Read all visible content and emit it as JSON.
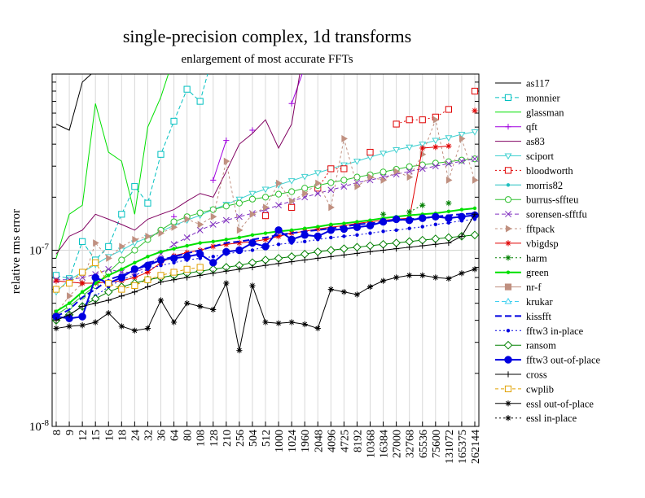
{
  "chart_data": {
    "type": "line",
    "title": "single-precision complex, 1d transforms",
    "subtitle": "enlargement of most accurate FFTs",
    "ylabel": "relative rms error",
    "xlabel": "",
    "y_scale": "log",
    "ylim": [
      1e-08,
      1e-06
    ],
    "y_tick_labels": [
      "10-8",
      "10-7"
    ],
    "y_tick_values": [
      1e-08,
      1e-07
    ],
    "legend_position": "right",
    "grid": true,
    "categories": [
      "8",
      "9",
      "12",
      "15",
      "16",
      "18",
      "24",
      "32",
      "36",
      "64",
      "80",
      "108",
      "128",
      "210",
      "256",
      "504",
      "512",
      "1000",
      "1024",
      "1960",
      "2048",
      "4096",
      "4725",
      "8192",
      "10368",
      "16384",
      "27000",
      "32768",
      "65536",
      "75600",
      "131072",
      "165375",
      "262144"
    ],
    "series": [
      {
        "name": "as117",
        "color": "#000000",
        "dash": "",
        "marker": "none",
        "values": [
          5.2e-07,
          4.8e-07,
          9e-07,
          1.05e-06,
          1.2e-06,
          1.25e-06,
          null,
          null,
          null,
          null,
          null,
          null,
          null,
          null,
          null,
          null,
          null,
          null,
          null,
          null,
          null,
          null,
          null,
          null,
          null,
          null,
          null,
          null,
          null,
          null,
          null,
          null,
          null
        ]
      },
      {
        "name": "monnier",
        "color": "#00c0c0",
        "dash": "5,3",
        "marker": "square",
        "values": [
          7.2e-08,
          6.9e-08,
          1.12e-07,
          8.8e-08,
          1.05e-07,
          1.6e-07,
          2.3e-07,
          1.85e-07,
          3.5e-07,
          5.4e-07,
          8.2e-07,
          7e-07,
          1.3e-06,
          null,
          null,
          null,
          null,
          null,
          null,
          null,
          null,
          null,
          null,
          null,
          null,
          null,
          null,
          null,
          null,
          null,
          null,
          null,
          null
        ]
      },
      {
        "name": "glassman",
        "color": "#00e000",
        "dash": "",
        "marker": "none",
        "values": [
          9e-08,
          1.6e-07,
          1.8e-07,
          6.8e-07,
          3.6e-07,
          3.2e-07,
          1.6e-07,
          5e-07,
          7.4e-07,
          1.25e-06,
          null,
          null,
          1.2e-06,
          1.5e-06,
          1.05e-06,
          null,
          null,
          null,
          null,
          null,
          null,
          null,
          null,
          null,
          null,
          null,
          null,
          null,
          null,
          null,
          null,
          null,
          null
        ]
      },
      {
        "name": "qft",
        "color": "#a000e0",
        "dash": "",
        "marker": "plus",
        "values": [
          null,
          null,
          null,
          null,
          null,
          null,
          null,
          null,
          null,
          1.55e-07,
          null,
          null,
          2.5e-07,
          4.2e-07,
          null,
          4.8e-07,
          null,
          null,
          6.8e-07,
          1.1e-06,
          null,
          null,
          null,
          null,
          null,
          null,
          null,
          null,
          null,
          null,
          null,
          null,
          null
        ]
      },
      {
        "name": "as83",
        "color": "#800060",
        "dash": "",
        "marker": "none",
        "values": [
          9.5e-08,
          1.2e-07,
          1.3e-07,
          1.6e-07,
          1.5e-07,
          1.4e-07,
          1.3e-07,
          1.5e-07,
          1.6e-07,
          1.7e-07,
          1.9e-07,
          2.1e-07,
          2e-07,
          2.8e-07,
          4e-07,
          4.6e-07,
          5.5e-07,
          3.8e-07,
          5.2e-07,
          1.5e-06,
          null,
          null,
          null,
          null,
          null,
          null,
          null,
          null,
          null,
          null,
          null,
          null,
          null
        ]
      },
      {
        "name": "sciport",
        "color": "#40d0d0",
        "dash": "",
        "marker": "tri-down",
        "values": [
          5.8e-08,
          6.8e-08,
          7.5e-08,
          8.3e-08,
          9.2e-08,
          1e-07,
          1.1e-07,
          1.18e-07,
          1.28e-07,
          1.38e-07,
          1.48e-07,
          1.58e-07,
          1.7e-07,
          1.82e-07,
          1.95e-07,
          2.1e-07,
          2.22e-07,
          2.35e-07,
          2.48e-07,
          2.62e-07,
          2.75e-07,
          2.9e-07,
          3.05e-07,
          3.2e-07,
          3.38e-07,
          3.55e-07,
          3.72e-07,
          3.85e-07,
          4e-07,
          4.2e-07,
          4.35e-07,
          4.55e-07,
          4.7e-07
        ]
      },
      {
        "name": "bloodworth",
        "color": "#e00000",
        "dash": "2,3",
        "marker": "square",
        "values": [
          null,
          null,
          null,
          null,
          null,
          null,
          null,
          null,
          null,
          null,
          null,
          null,
          null,
          null,
          null,
          null,
          1.57e-07,
          null,
          1.75e-07,
          null,
          2.25e-07,
          2.9e-07,
          2.9e-07,
          null,
          3.6e-07,
          null,
          5.2e-07,
          5.5e-07,
          5.5e-07,
          5.7e-07,
          6.3e-07,
          null,
          8e-07
        ]
      },
      {
        "name": "morris82",
        "color": "#20c0c0",
        "dash": "",
        "marker": "dot",
        "values": [
          null,
          null,
          null,
          null,
          null,
          null,
          null,
          null,
          null,
          null,
          null,
          null,
          null,
          null,
          null,
          null,
          null,
          null,
          null,
          null,
          null,
          null,
          null,
          null,
          null,
          null,
          null,
          null,
          null,
          null,
          null,
          null,
          null
        ]
      },
      {
        "name": "burrus-sfftеu",
        "color": "#30c030",
        "dash": "",
        "marker": "circle",
        "values": [
          4.3e-08,
          4.8e-08,
          5.5e-08,
          6.3e-08,
          7.5e-08,
          8.8e-08,
          1e-07,
          1.15e-07,
          1.3e-07,
          1.45e-07,
          1.55e-07,
          1.63e-07,
          1.7e-07,
          1.78e-07,
          1.85e-07,
          1.95e-07,
          2e-07,
          2.08e-07,
          2.15e-07,
          2.25e-07,
          2.33e-07,
          2.42e-07,
          2.5e-07,
          2.6e-07,
          2.68e-07,
          2.78e-07,
          2.88e-07,
          2.98e-07,
          3.05e-07,
          3.12e-07,
          3.18e-07,
          3.25e-07,
          3.3e-07
        ]
      },
      {
        "name": "sorensen-sfftfu",
        "color": "#8030c0",
        "dash": "5,3",
        "marker": "x",
        "values": [
          6.8e-08,
          6.8e-08,
          7e-08,
          7.3e-08,
          7.8e-08,
          7.5e-08,
          7.5e-08,
          8e-08,
          9.5e-08,
          1.08e-07,
          1.18e-07,
          1.3e-07,
          1.4e-07,
          1.48e-07,
          1.55e-07,
          1.62e-07,
          1.7e-07,
          1.8e-07,
          1.9e-07,
          2e-07,
          2.1e-07,
          2.2e-07,
          2.3e-07,
          2.42e-07,
          2.5e-07,
          2.6e-07,
          2.7e-07,
          2.8e-07,
          2.9e-07,
          3e-07,
          3.1e-07,
          3.2e-07,
          3.3e-07
        ]
      },
      {
        "name": "fftpack",
        "color": "#c09080",
        "dash": "3,3",
        "marker": "tri-right",
        "values": [
          4.4e-08,
          5.5e-08,
          6.5e-08,
          1.1e-07,
          9e-08,
          1.05e-07,
          1.15e-07,
          1.2e-07,
          1.25e-07,
          1.35e-07,
          1.5e-07,
          1.4e-07,
          1.55e-07,
          3.2e-07,
          1.3e-07,
          1.6e-07,
          1.75e-07,
          2.4e-07,
          1.9e-07,
          2.1e-07,
          2.4e-07,
          1.75e-07,
          4.3e-07,
          2.3e-07,
          2.6e-07,
          2.5e-07,
          2.8e-07,
          2.6e-07,
          3.5e-07,
          5.5e-07,
          2.5e-07,
          4.3e-07,
          2.5e-07
        ]
      },
      {
        "name": "vbigdsp",
        "color": "#e00000",
        "dash": "",
        "marker": "asterisk",
        "values": [
          6.7e-08,
          6.6e-08,
          6.5e-08,
          6.5e-08,
          6.6e-08,
          6.7e-08,
          7e-08,
          7.5e-08,
          8.5e-08,
          9.3e-08,
          9.7e-08,
          1e-07,
          1.05e-07,
          1.08e-07,
          1.1e-07,
          1.12e-07,
          1.15e-07,
          1.2e-07,
          1.25e-07,
          1.28e-07,
          1.32e-07,
          1.35e-07,
          1.38e-07,
          1.42e-07,
          1.45e-07,
          1.48e-07,
          1.5e-07,
          1.52e-07,
          3.8e-07,
          3.85e-07,
          3.9e-07,
          null,
          6.2e-07
        ]
      },
      {
        "name": "harm",
        "color": "#008000",
        "dash": "2,3",
        "marker": "asterisk",
        "values": [
          null,
          null,
          null,
          null,
          null,
          null,
          null,
          null,
          null,
          null,
          null,
          null,
          null,
          null,
          null,
          null,
          null,
          null,
          null,
          null,
          null,
          null,
          null,
          null,
          null,
          1.6e-07,
          null,
          1.65e-07,
          1.8e-07,
          null,
          1.85e-07,
          null,
          null
        ]
      },
      {
        "name": "green",
        "color": "#00e000",
        "dash": "",
        "marker": "dot",
        "values": [
          4.5e-08,
          5e-08,
          5.8e-08,
          6.5e-08,
          7.2e-08,
          7.8e-08,
          8.5e-08,
          9.2e-08,
          9.8e-08,
          1.02e-07,
          1.06e-07,
          1.1e-07,
          1.12e-07,
          1.15e-07,
          1.18e-07,
          1.22e-07,
          1.25e-07,
          1.28e-07,
          1.3e-07,
          1.33e-07,
          1.36e-07,
          1.4e-07,
          1.42e-07,
          1.45e-07,
          1.48e-07,
          1.52e-07,
          1.55e-07,
          1.58e-07,
          1.6e-07,
          1.62e-07,
          1.66e-07,
          1.7e-07,
          1.73e-07
        ]
      },
      {
        "name": "nr-f",
        "color": "#c09080",
        "dash": "",
        "marker": "square-fill",
        "values": [
          null,
          null,
          null,
          null,
          null,
          null,
          null,
          null,
          null,
          null,
          null,
          null,
          null,
          null,
          null,
          null,
          null,
          null,
          null,
          null,
          null,
          null,
          null,
          null,
          null,
          null,
          null,
          null,
          null,
          null,
          null,
          null,
          null
        ]
      },
      {
        "name": "krukar",
        "color": "#40d0f0",
        "dash": "5,3",
        "marker": "tri-up",
        "values": [
          null,
          null,
          null,
          null,
          null,
          null,
          null,
          null,
          null,
          null,
          null,
          null,
          null,
          null,
          null,
          null,
          null,
          null,
          null,
          null,
          null,
          null,
          null,
          null,
          null,
          null,
          null,
          null,
          null,
          null,
          null,
          null,
          null
        ]
      },
      {
        "name": "kissfft",
        "color": "#0000e0",
        "dash": "8,4",
        "marker": "none",
        "values": [
          4.2e-08,
          4.6e-08,
          5.4e-08,
          6e-08,
          6.8e-08,
          7.2e-08,
          7.6e-08,
          8.5e-08,
          8.8e-08,
          9.2e-08,
          9.6e-08,
          1e-07,
          1.05e-07,
          1.1e-07,
          1.12e-07,
          1.15e-07,
          1.18e-07,
          1.22e-07,
          1.25e-07,
          1.28e-07,
          1.3e-07,
          1.33e-07,
          1.36e-07,
          1.4e-07,
          1.42e-07,
          1.45e-07,
          1.48e-07,
          1.5e-07,
          1.52e-07,
          1.55e-07,
          1.58e-07,
          1.6e-07,
          1.62e-07
        ]
      },
      {
        "name": "fftw3 in-place",
        "color": "#0000e0",
        "dash": "2,3",
        "marker": "dot",
        "values": [
          4.1e-08,
          4.3e-08,
          4.8e-08,
          5.5e-08,
          6.2e-08,
          6.8e-08,
          7.2e-08,
          7.8e-08,
          8.2e-08,
          8.5e-08,
          8.8e-08,
          9e-08,
          9.2e-08,
          9.5e-08,
          9.8e-08,
          1e-07,
          1.05e-07,
          1.08e-07,
          1.1e-07,
          1.12e-07,
          1.15e-07,
          1.18e-07,
          1.2e-07,
          1.22e-07,
          1.25e-07,
          1.28e-07,
          1.3e-07,
          1.33e-07,
          1.36e-07,
          1.4e-07,
          1.43e-07,
          1.47e-07,
          1.5e-07
        ]
      },
      {
        "name": "ransom",
        "color": "#008000",
        "dash": "",
        "marker": "diamond",
        "values": [
          4e-08,
          4.3e-08,
          4.8e-08,
          5.3e-08,
          5.8e-08,
          6.2e-08,
          6.5e-08,
          6.8e-08,
          7e-08,
          7.2e-08,
          7.4e-08,
          7.6e-08,
          7.8e-08,
          8e-08,
          8.2e-08,
          8.5e-08,
          8.8e-08,
          9e-08,
          9.2e-08,
          9.5e-08,
          9.8e-08,
          1e-07,
          1.02e-07,
          1.04e-07,
          1.06e-07,
          1.08e-07,
          1.1e-07,
          1.12e-07,
          1.14e-07,
          1.16e-07,
          1.18e-07,
          1.2e-07,
          1.22e-07
        ]
      },
      {
        "name": "fftw3 out-of-place",
        "color": "#0000e0",
        "dash": "",
        "marker": "circle-fill",
        "values": [
          4.2e-08,
          4.1e-08,
          4.2e-08,
          7e-08,
          6.5e-08,
          7e-08,
          7.8e-08,
          8.2e-08,
          8.8e-08,
          9e-08,
          9.2e-08,
          9.5e-08,
          8.5e-08,
          9.8e-08,
          1e-07,
          1.1e-07,
          1.05e-07,
          1.3e-07,
          1.15e-07,
          1.22e-07,
          1.2e-07,
          1.3e-07,
          1.32e-07,
          1.35e-07,
          1.38e-07,
          1.45e-07,
          1.5e-07,
          1.48e-07,
          1.52e-07,
          1.55e-07,
          1.52e-07,
          1.55e-07,
          1.58e-07
        ]
      },
      {
        "name": "cross",
        "color": "#000000",
        "dash": "",
        "marker": "plus",
        "values": [
          4e-08,
          4.3e-08,
          4.8e-08,
          5e-08,
          5.2e-08,
          5.5e-08,
          5.8e-08,
          6.2e-08,
          6.6e-08,
          6.8e-08,
          7e-08,
          7.2e-08,
          7.4e-08,
          7.6e-08,
          7.8e-08,
          8e-08,
          8.2e-08,
          8.4e-08,
          8.6e-08,
          8.8e-08,
          9e-08,
          9.2e-08,
          9.4e-08,
          9.6e-08,
          9.8e-08,
          1e-07,
          1.02e-07,
          1.04e-07,
          1.06e-07,
          1.08e-07,
          1.1e-07,
          1.2e-07,
          1.6e-07
        ]
      },
      {
        "name": "cwplib",
        "color": "#e0a000",
        "dash": "4,3",
        "marker": "square",
        "values": [
          6e-08,
          6.5e-08,
          7.5e-08,
          8.5e-08,
          6.5e-08,
          6e-08,
          6.3e-08,
          6.8e-08,
          7.2e-08,
          7.5e-08,
          7.8e-08,
          8e-08,
          null,
          null,
          null,
          null,
          null,
          null,
          null,
          null,
          null,
          null,
          null,
          null,
          null,
          null,
          null,
          null,
          null,
          null,
          null,
          null,
          null
        ]
      },
      {
        "name": "essl out-of-place",
        "color": "#000000",
        "dash": "",
        "marker": "asterisk",
        "values": [
          3.6e-08,
          3.7e-08,
          3.75e-08,
          3.9e-08,
          4.4e-08,
          3.7e-08,
          3.5e-08,
          3.6e-08,
          5.2e-08,
          3.9e-08,
          5e-08,
          4.8e-08,
          4.6e-08,
          6.5e-08,
          2.7e-08,
          6.3e-08,
          3.9e-08,
          3.85e-08,
          3.9e-08,
          3.8e-08,
          3.6e-08,
          6e-08,
          5.8e-08,
          5.6e-08,
          6.2e-08,
          6.7e-08,
          7e-08,
          7.2e-08,
          7.2e-08,
          7e-08,
          6.9e-08,
          7.4e-08,
          7.8e-08
        ]
      },
      {
        "name": "essl in-place",
        "color": "#000000",
        "dash": "2,3",
        "marker": "asterisk",
        "values": [
          null,
          null,
          null,
          null,
          null,
          null,
          null,
          null,
          null,
          null,
          null,
          null,
          null,
          null,
          null,
          null,
          null,
          null,
          null,
          null,
          null,
          null,
          null,
          null,
          null,
          null,
          null,
          null,
          null,
          null,
          null,
          null,
          null
        ]
      }
    ]
  }
}
